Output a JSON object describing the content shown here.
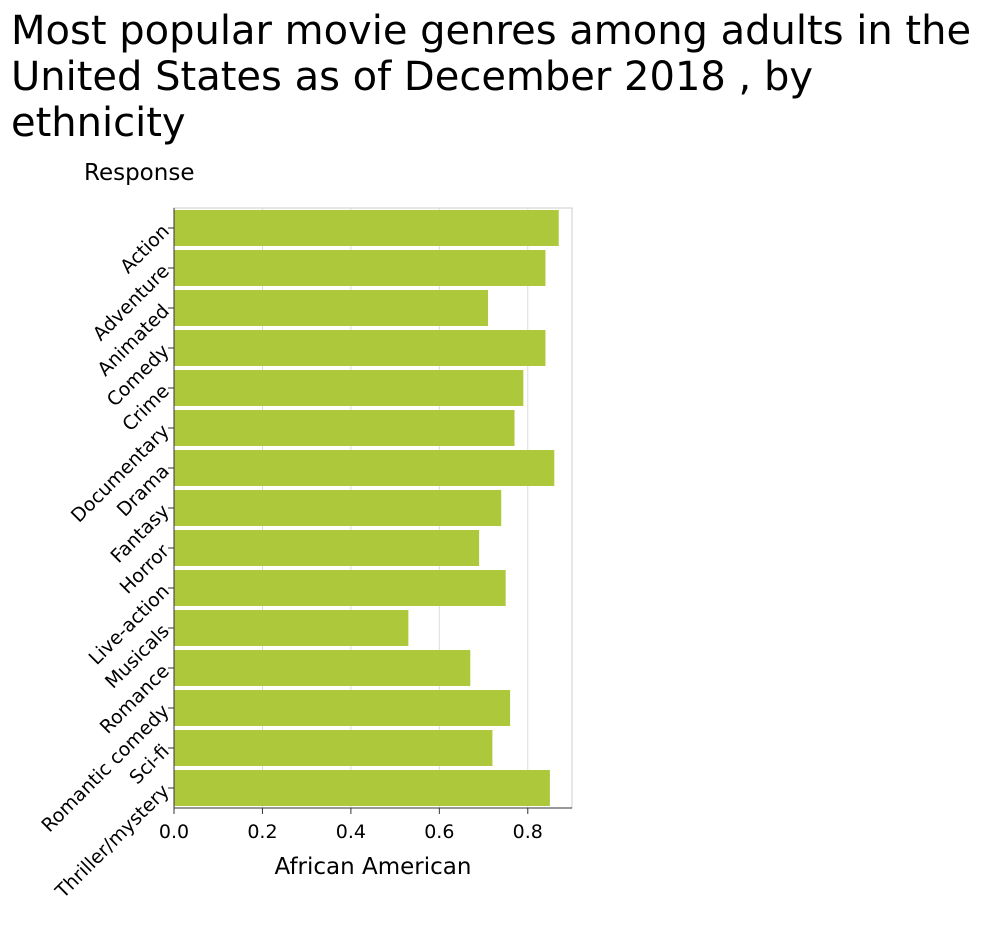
{
  "chart_data": {
    "type": "bar",
    "orientation": "horizontal",
    "title": "Most popular movie genres among adults in the United States as of December 2018 , by ethnicity",
    "ylabel": "Response",
    "xlabel": "African American",
    "categories": [
      "Action",
      "Adventure",
      "Animated",
      "Comedy",
      "Crime",
      "Documentary",
      "Drama",
      "Fantasy",
      "Horror",
      "Live-action",
      "Musicals",
      "Romance",
      "Romantic comedy",
      "Sci-fi",
      "Thriller/mystery"
    ],
    "values": [
      0.87,
      0.84,
      0.71,
      0.84,
      0.79,
      0.77,
      0.86,
      0.74,
      0.69,
      0.75,
      0.53,
      0.67,
      0.76,
      0.72,
      0.85
    ],
    "xlim": [
      0,
      0.9
    ],
    "xticks": [
      "0.0",
      "0.2",
      "0.4",
      "0.6",
      "0.8"
    ],
    "xtick_values": [
      0,
      0.2,
      0.4,
      0.6,
      0.8
    ],
    "grid": "vertical",
    "bar_color": "#adc83b"
  }
}
